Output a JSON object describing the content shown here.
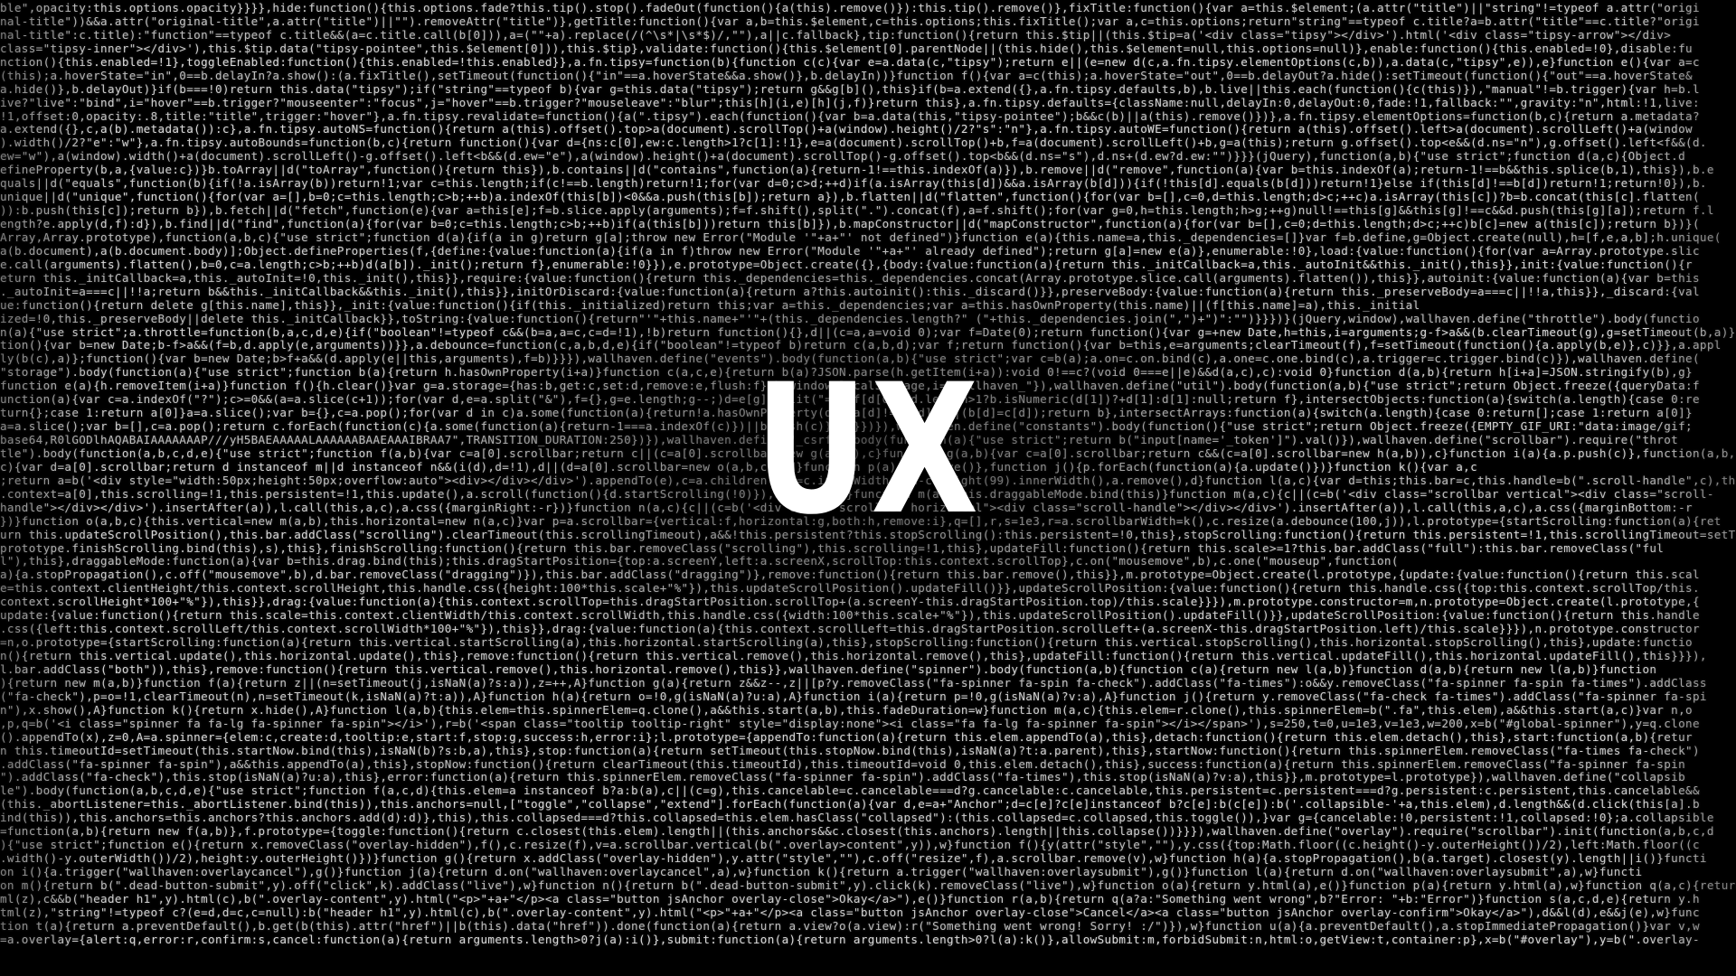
{
  "headline": "UX",
  "colors": {
    "background": "#000000",
    "code_text": "#cfcfcf",
    "headline": "#ffffff"
  },
  "code_lines": [
    "ble\",opacity:this.options.opacity}}}},hide:function(){this.options.fade?this.tip().stop().fadeOut(function(){a(this).remove()}):this.tip().remove()},fixTitle:function(){var a=this.$element;(a.attr(\"title\")||\"string\"!=typeof a.attr(\"origi",
    "nal-title\"))&&a.attr(\"original-title\",a.attr(\"title\")||\"\").removeAttr(\"title\")},getTitle:function(){var a,b=this.$element,c=this.options;this.fixTitle();var a,c=this.options;return\"string\"==typeof c.title?a=b.attr(\"title\"==c.title?\"origi",
    "nal-title\":c.title):\"function\"==typeof c.title&&(a=c.title.call(b[0])),a=(\"\"+a).replace(/(^\\s*|\\s*$)/,\"\"),a||c.fallback},tip:function(){return this.$tip||(this.$tip=a('<div class=\"tipsy\"></div>').html('<div class=\"tipsy-arrow\"></div>",
    "class=\"tipsy-inner\"></div>'),this.$tip.data(\"tipsy-pointee\",this.$element[0])),this.$tip},validate:function(){this.$element[0].parentNode||(this.hide(),this.$element=null,this.options=null)},enable:function(){this.enabled=!0},disable:fu",
    "nction(){this.enabled=!1},toggleEnabled:function(){this.enabled=!this.enabled}},a.fn.tipsy=function(b){function c(c){var e=a.data(c,\"tipsy\");return e||(e=new d(c,a.fn.tipsy.elementOptions(c,b)),a.data(c,\"tipsy\",e)),e}function e(){var a=c",
    "(this);a.hoverState=\"in\",0==b.delayIn?a.show():(a.fixTitle(),setTimeout(function(){\"in\"==a.hoverState&&a.show()},b.delayIn))}function f(){var a=c(this);a.hoverState=\"out\",0==b.delayOut?a.hide():setTimeout(function(){\"out\"==a.hoverState&",
    "a.hide()},b.delayOut)}if(b===!0)return this.data(\"tipsy\");if(\"string\"==typeof b){var g=this.data(\"tipsy\");return g&&g[b](),this}if(b=a.extend({},a.fn.tipsy.defaults,b),b.live||this.each(function(){c(this)}),\"manual\"!=b.trigger){var h=b.l",
    "ive?\"live\":\"bind\",i=\"hover\"==b.trigger?\"mouseenter\":\"focus\",j=\"hover\"==b.trigger?\"mouseleave\":\"blur\";this[h](i,e)[h](j,f)}return this},a.fn.tipsy.defaults={className:null,delayIn:0,delayOut:0,fade:!1,fallback:\"\",gravity:\"n\",html:!1,live:",
    "!1,offset:0,opacity:.8,title:\"title\",trigger:\"hover\"},a.fn.tipsy.revalidate=function(){a(\".tipsy\").each(function(){var b=a.data(this,\"tipsy-pointee\");b&&c(b)||a(this).remove()})},a.fn.tipsy.elementOptions=function(b,c){return a.metadata?",
    "a.extend({},c,a(b).metadata()):c},a.fn.tipsy.autoNS=function(){return a(this).offset().top>a(document).scrollTop()+a(window).height()/2?\"s\":\"n\"},a.fn.tipsy.autoWE=function(){return a(this).offset().left>a(document).scrollLeft()+a(window",
    ").width()/2?\"e\":\"w\"},a.fn.tipsy.autoBounds=function(b,c){return function(){var d={ns:c[0],ew:c.length>1?c[1]:!1},e=a(document).scrollTop()+b,f=a(document).scrollLeft()+b,g=a(this);return g.offset().top<e&&(d.ns=\"n\"),g.offset().left<f&&(d.",
    "ew=\"w\"),a(window).width()+a(document).scrollLeft()-g.offset().left<b&&(d.ew=\"e\"),a(window).height()+a(document).scrollTop()-g.offset().top<b&&(d.ns=\"s\"),d.ns+(d.ew?d.ew:\"\")}}}(jQuery),function(a,b){\"use strict\";function d(a,c){Object.d",
    "efineProperty(b,a,{value:c})}b.toArray||d(\"toArray\",function(){return this}),b.contains||d(\"contains\",function(a){return-1!==this.indexOf(a)}),b.remove||d(\"remove\",function(a){var b=this.indexOf(a);return-1!==b&&this.splice(b,1),this}),b.e",
    "quals||d(\"equals\",function(b){if(!a.isArray(b))return!1;var c=this.length;if(c!==b.length)return!1;for(var d=0;c>d;++d)if(a.isArray(this[d])&&a.isArray(b[d])){if(!this[d].equals(b[d]))return!1}else if(this[d]!==b[d])return!1;return!0}),b.",
    "unique||d(\"unique\",function(){for(var a=[],b=0;c=this.length;c>b;++b)a.indexOf(this[b])<0&&a.push(this[b]);return a}),b.flatten||d(\"flatten\",function(){for(var b=[],c=0,d=this.length;d>c;++c)a.isArray(this[c])?b=b.concat(this[c].flatten(",
    ")):b.push(this[c]);return b}),b.fetch||d(\"fetch\",function(e){var a=this[e];f=b.slice.apply(arguments);f=f.shift(),split(\".\").concat(f),a=f.shift();for(var g=0,h=this.length;h>g;++g)null!==this[g]&&this[g]!==c&&d.push(this[g][a]);return f.l",
    "ength?e.apply(d,f):d}),b.find||d(\"find\",function(a){for(var b=0;c=this.length;c>b;++b)if(a(this[b]))return this[b]}),b.mapConstructor||d(\"mapConstructor\",function(a){for(var b=[],c=0;d=this.length;d>c;++c)b[c]=new a(this[c]);return b})}(",
    "Array,Array.prototype),function(a,b,c){\"use strict\";function d(a){if(a in g)return g[a];throw new Error(\"Module '\"+a+\"' not defined\")}function e(a){this.name=a,this._dependencies=[]}var f=b.define,g=Object.create(null),h=[f,e,a,b];h.unique(",
    "a(b.document),a(b.document.body)];Object.defineProperties(f,{define:{value:function(a){if(a in f)throw new Error(\"Module '\"+a+\"' already defined\");return g[a]=new e(a)},enumerable:!0},load:{value:function(){for(var a=Array.prototype.slic",
    "e.call(arguments).flatten(),b=0,c=a.length;c>b;++b)d(a[b])._init();return f},enumerable:!0}}),e.prototype=Object.create({},{body:{value:function(a){return this._initCallback=a,this._autoInit&&this._init(),this}},init:{value:function(){r",
    "eturn this._initCallback=a,this._autoInit=!0,this._init(),this}},require:{value:function(){return this._dependencies=this._dependencies.concat(Array.prototype.slice.call(arguments).flatten()),this}},autoinit:{value:function(a){var b=this",
    "._autoInit=a===c||!!a;return b&&this._initCallback&&this._init(),this}},initOrDiscard:{value:function(a){return a?this.autoinit():this._discard()}},preserveBody:{value:function(a){return this._preserveBody=a===c||!!a,this}},_discard:{val",
    "ue:function(){return delete g[this.name],this}},_init:{value:function(){if(this._initialized)return this;var a=this._dependencies;var a=this.hasOwnProperty(this.name)||(f[this.name]=a),this._initial",
    "ized=!0,this._preserveBody||delete this._initCallback}},toString:{value:function(){return\"'\"+this.name+\"'\"+(this._dependencies.length?\" (\"+this._dependencies.join(\",\")+\")\":\"\")}}})}(jQuery,window),wallhaven.define(\"throttle\").body(functio",
    "n(a){\"use strict\";a.throttle=function(b,a,c,d,e){if(\"boolean\"!=typeof c&&(b=a,a=c,c=d=!1),!b)return function(){},d||(c=a,a=void 0);var f=Date(0);return function(){var g=+new Date,h=this,i=arguments;g-f>a&&(b.clearTimeout(g),g=setTimeout(b,a)}}}",
    "tion(){var b=new Date;b-f>a&&(f=b,d.apply(e,arguments))}},a.debounce=function(c,a,b,d,e){if(\"boolean\"!=typeof b)return c(a,b,d);var f;return function(){var b=this,e=arguments;clearTimeout(f),f=setTimeout(function(){a.apply(b,e)},c)}},a.appl",
    "ly(b(c),a)};function(){var b=new Date;b>f+a&&(d.apply(e||this,arguments),f=b)}}}),wallhaven.define(\"events\").body(function(a,b){\"use strict\";var c=b(a);a.on=c.on.bind(c),a.one=c.one.bind(c),a.trigger=c.trigger.bind(c)}),wallhaven.define(",
    "\"storage\").body(function(a){\"use strict\";function b(a){return h.hasOwnProperty(i+a)}function c(a,c,e){return b(a)?JSON.parse(h.getItem(i+a)):void 0!==c?(void 0===e||e)&&d(a,c),c):void 0}function d(a,b){return h[i+a]=JSON.stringify(b),g}",
    "function e(a){h.removeItem(i+a)}function f(){h.clear()}var g=a.storage={has:b,get:c,set:d,remove:e,flush:f},h=window.localStorage,i=\"wallhaven_\"}),wallhaven.define(\"util\").body(function(a,b){\"use strict\";return Object.freeze({queryData:f",
    "unction(a){var c=a.indexOf(\"?\");c>=0&&(a=a.slice(c+1));for(var d,e=a.split(\"&\"),f={},g=e.length;g--;)d=e[g].split(\"=\"),f[d[0]]=d.length>1?b.isNumeric(d[1])?+d[1]:d[1]:null;return f},intersectObjects:function(a){switch(a.length){case 0:re",
    "turn{};case 1:return a[0]}a=a.slice();var b={},c=a.pop();for(var d in c)a.some(function(a){return!a.hasOwnProperty(d)||a[d]!==c[d]})||(b[d]=c[d]);return b},intersectArrays:function(a){switch(a.length){case 0:return[];case 1:return a[0]}",
    "a=a.slice();var b=[],c=a.pop();return c.forEach(function(c){a.some(function(a){return-1===a.indexOf(c)})||b.push(c)}),b}})}),wallhaven.define(\"constants\").body(function(){\"use strict\";return Object.freeze({EMPTY_GIF_URI:\"data:image/gif;",
    "base64,R0lGODlhAQABAIAAAAAAAP///yH5BAEAAAAALAAAAAABAAEAAAIBRAA7\",TRANSITION_DURATION:250})}),wallhaven.define(\"_csrf\").body(function(a){\"use strict\";return b(\"input[name='_token']\").val()}),wallhaven.define(\"scrollbar\").require(\"throt",
    "tle\").body(function(a,b,c,d,e){\"use strict\";function f(a,b){var c=a[0].scrollbar;return c||(c=a[0].scrollbar=new g(a,b)),c}function g(a,b){var c=a[0].scrollbar;return c&&(c=a[0].scrollbar=new h(a,b)),c}function i(a){a.p.push(c)},function(a,b,",
    "c){var d=a[0].scrollbar;return d instanceof m||d instanceof n&&(i(d),d=!1),d||(d=a[0].scrollbar=new o(a,b,c)),d}function p(a){a.remove()},function j(){p.forEach(function(a){a.update()})}function k(){var a,c",
    ";return a=b('<div style=\"width:50px;height:50px;overflow:auto\"><div></div></div>').appendTo(e),c=a.children(),d=c.innerWidth(),d-c.height(99).innerWidth(),a.remove(),d}function l(a,c){var d=this;this.bar=c,this.handle=b(\".scroll-handle\",c),this",
    ".context=a[0],this.scrolling=!1,this.persistent=!1,this.update(),a.scroll(function(){d.startScrolling(!0)}),d.update()}function m(a){this.draggableMode.bind(this)}function m(a,c){c||(c=b('<div class=\"scrollbar vertical\"><div class=\"scroll-",
    "handle\"></div></div>').insertAfter(a)),l.call(this,a,c),a.css({marginRight:-r})}function n(a,c){c||(c=b('<div class=\"scrollbar horizontal\"><div class=\"scroll-handle\"></div></div>').insertAfter(a)),l.call(this,a,c),a.css({marginBottom:-r",
    "})}function o(a,b,c){this.vertical=new m(a,b),this.horizontal=new n(a,c)}var p=a.scrollbar={vertical:f,horizontal:g,both:h,remove:i},q=[],r,s=1e3,r=a.scrollbarWidth=k(),c.resize(a.debounce(100,j)),l.prototype={startScrolling:function(a){ret",
    "urn this.updateScrollPosition(),this.bar.addClass(\"scrolling\").clearTimeout(this.scrollingTimeout),a&&!this.persistent?this.stopScrolling():this.persistent=!0,this},stopScrolling:function(){return this.persistent=!1,this.scrollingTimeout=setTimeout(",
    "prototype.finishScrolling.bind(this),s),this},finishScrolling:function(){return this.bar.removeClass(\"scrolling\"),this.scrolling=!1,this},updateFill:function(){return this.scale>=1?this.bar.addClass(\"full\"):this.bar.removeClass(\"ful",
    "l\"),this},draggableMode:function(a){var b=this.drag.bind(this);this.dragStartPosition={top:a.screenY,left:a.screenX,scrollTop:this.context.scrollTop},c.on(\"mousemove\",b),c.one(\"mouseup\",function(",
    "a){a.stopPropagation(),c.off(\"mousemove\",b),d.bar.removeClass(\"dragging\")}),this.bar.addClass(\"dragging\")},remove:function(){return this.bar.remove(),this}},m.prototype=Object.create(l.prototype,{update:{value:function(){return this.scal",
    "e=this.context.clientHeight/this.context.scrollHeight,this.handle.css({height:100*this.scale+\"%\"}),this.updateScrollPosition().updateFill()}},updateScrollPosition:{value:function(){return this.handle.css({top:this.context.scrollTop/this.",
    "context.scrollHeight*100+\"%\"}),this}},drag:{value:function(a){this.context.scrollTop=this.dragStartPosition.scrollTop+(a.screenY-this.dragStartPosition.top)/this.scale}}}),m.prototype.constructor=m,n.prototype=Object.create(l.prototype,{",
    "update:{value:function(){return this.scale=this.context.clientWidth/this.context.scrollWidth,this.handle.css({width:100*this.scale+\"%\"}),this.updateScrollPosition().updateFill()}},updateScrollPosition:{value:function(){return this.handle",
    ".css({left:this.context.scrollLeft/this.context.scrollWidth*100+\"%\"}),this}},drag:{value:function(a){this.context.scrollLeft=this.dragStartPosition.scrollLeft+(a.screenX-this.dragStartPosition.left)/this.scale}}}),n.prototype.constructor",
    "=n,o.prototype={startScrolling:function(a){return this.vertical.startScrolling(a),this.horizontal.startScrolling(a),this},stopScrolling:function(){return this.vertical.stopScrolling(),this.horizontal.stopScrolling(),this},update:functio",
    "n(){return this.vertical.update(),this.horizontal.update(),this},remove:function(){return this.vertical.remove(),this.horizontal.remove(),this},updateFill:function(){return this.vertical.updateFill(),this.horizontal.updateFill(),this}}}),",
    "l.bar.addClass(\"both\")),this},remove:function(){return this.vertical.remove(),this.horizontal.remove(),this}},wallhaven.define(\"spinner\").body(function(a,b){function c(a){return new l(a,b)}function d(a,b){return new l(a,b)}function",
    "){return new m(a,b)}function f(a){return z||(n=setTimeout(j,isNaN(a)?s:a)),z=++,A}function g(a){return z&&z--,z||[p?y.removeClass(\"fa-spinner fa-spin fa-check\").addClass(\"fa-times\"):o&&y.removeClass(\"fa-spinner fa-spin fa-times\").addClass",
    "(\"fa-check\"),p=o=!1,clearTimeout(n),n=setTimeout(k,isNaN(a)?t:a)),A}function h(a){return o=!0,g(isNaN(a)?u:a),A}function i(a){return p=!0,g(isNaN(a)?v:a),A}function j(){return y.removeClass(\"fa-check fa-times\").addClass(\"fa-spinner fa-spi",
    "n\"),x.show(),A}function k(){return x.hide(),A}function l(a,b){this.elem=this.spinnerElem=q.clone(),a&&this.start(a,b),this.fadeDuration=w}function m(a,c){this.elem=r.clone(),this.spinnerElem=b(\".fa\",this.elem),a&&this.start(a,c)}var n,o",
    ",p,q=b('<i class=\"spinner fa fa-lg fa-spinner fa-spin\"></i>'),r=b('<span class=\"tooltip tooltip-right\" style=\"display:none\"><i class=\"fa fa-lg fa-spinner fa-spin\"></i></span>'),s=250,t=0,u=1e3,v=1e3,w=200,x=b(\"#global-spinner\"),y=q.clone",
    "().appendTo(x),z=0,A=a.spinner={elem:c,create:d,tooltip:e,start:f,stop:g,success:h,error:i};l.prototype={appendTo:function(a){return this.elem.appendTo(a),this},detach:function(){return this.elem.detach(),this},start:function(a,b){retur",
    "n this.timeoutId=setTimeout(this.startNow.bind(this),isNaN(b)?s:b,a),this},stop:function(a){return setTimeout(this.stopNow.bind(this),isNaN(a)?t:a.parent),this},startNow:function(){return this.spinnerElem.removeClass(\"fa-times fa-check\")",
    ".addClass(\"fa-spinner fa-spin\"),a&&this.appendTo(a),this},stopNow:function(){return clearTimeout(this.timeoutId),this.timeoutId=void 0,this.elem.detach(),this},success:function(a){return this.spinnerElem.removeClass(\"fa-spinner fa-spin",
    "\").addClass(\"fa-check\"),this.stop(isNaN(a)?u:a),this},error:function(a){return this.spinnerElem.removeClass(\"fa-spinner fa-spin\").addClass(\"fa-times\"),this.stop(isNaN(a)?v:a),this}},m.prototype=l.prototype}),wallhaven.define(\"collapsib",
    "le\").body(function(a,b,c,d,e){\"use strict\";function f(a,c,d){this.elem=a instanceof b?a:b(a),c||(c=g),this.cancelable=c.cancelable===d?g.cancelable:c.cancelable,this.persistent=c.persistent===d?g.persistent:c.persistent,this.cancelable&&",
    "(this._abortListener=this._abortListener.bind(this)),this.anchors=null,[\"toggle\",\"collapse\",\"extend\"].forEach(function(a){var d,e=a+\"Anchor\";d=c[e]?c[e]instanceof b?c[e]:b(c[e]):b('.collapsible-'+a,this.elem),d.length&&(d.click(this[a].b",
    "ind(this)),this.anchors=this.anchors?this.anchors.add(d):d)},this),this.collapsed===d?this.collapsed=this.elem.hasClass(\"collapsed\"):(this.collapsed=c.collapsed,this.toggle()),}var g={cancelable:!0,persistent:!1,collapsed:!0};a.collapsible",
    "=function(a,b){return new f(a,b)},f.prototype={toggle:function(){return c.closest(this.elem).length||(this.anchors&&c.closest(this.anchors).length||this.collapse())}}}),wallhaven.define(\"overlay\").require(\"scrollbar\").init(function(a,b,c,d",
    "){\"use strict\";function e(){return x.removeClass(\"overlay-hidden\"),f(),c.resize(f),v=a.scrollbar.vertical(b(\".overlay>content\",y)),w}function f(){y(attr(\"style\",\"\"),y.css({top:Math.floor((c.height()-y.outerHeight())/2),left:Math.floor((c",
    ".width()-y.outerWidth())/2),height:y.outerHeight()})}function g(){return x.addClass(\"overlay-hidden\"),y.attr(\"style\",\"\"),c.off(\"resize\",f),a.scrollbar.remove(v),w}function h(a){a.stopPropagation(),b(a.target).closest(y).length||i()}functi",
    "on i(){a.trigger(\"wallhaven:overlaycancel\"),g()}function j(a){return d.on(\"wallhaven:overlaycancel\",a),w}function k(){return a.trigger(\"wallhaven:overlaysubmit\"),g()}function l(a){return d.on(\"wallhaven:overlaysubmit\",a),w}functi",
    "on m(){return b(\".dead-button-submit\",y).off(\"click\",k).addClass(\"live\"),w}function n(){return b(\".dead-button-submit\",y).click(k).removeClass(\"live\"),w}function o(a){return y.html(a),e()}function p(a){return y.html(a),w}function q(a,c){return y.ht",
    "ml(z),c&&b(\"header h1\",y).html(c),b(\".overlay-content\",y).html(\"<p>\"+a+\"</p><a class=\"button jsAnchor overlay-close\">Okay</a>\"),e()}function r(a,b){return q(a?a:\"Something went wrong\",b?\"Error: \"+b:\"Error\")}function s(a,c,d,e){return y.h",
    "tml(z),\"string\"!=typeof c?(e=d,d=c,c=null):b(\"header h1\",y).html(c),b(\".overlay-content\",y).html(\"<p>\"+a+\"</p><a class=\"button jsAnchor overlay-close\">Cancel</a><a class=\"button jsAnchor overlay-confirm\">Okay</a>\"),d&&l(d),e&&j(e),w}func",
    "tion t(a){return a.preventDefault(),b.get(b(this).attr(\"href\")||b(this).data(\"href\")).done(function(a){return a.view?o(a.view):r(\"Something went wrong! Sorry! :/\")}),w}function u(a){a.preventDefault(),a.stopImmediatePropagation()}var v,w",
    "=a.overlay={alert:q,error:r,confirm:s,cancel:function(a){return arguments.length>0?j(a):i()},submit:function(a){return arguments.length>0?l(a):k()},allowSubmit:m,forbidSubmit:n,html:o,getView:t,container:p},x=b(\"#overlay\"),y=b(\".overlay-"
  ]
}
